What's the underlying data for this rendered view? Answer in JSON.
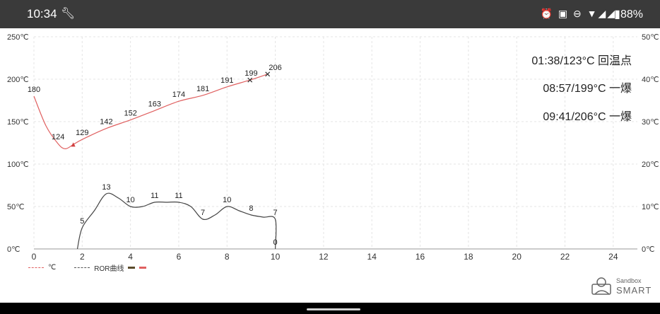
{
  "status_bar": {
    "time": "10:34",
    "left_icon": "wrench-icon",
    "icons_text": "⏰ ▣ ⊖ ▼◢◢",
    "battery": "▮88%"
  },
  "annotations": [
    "01:38/123°C 回温点",
    "08:57/199°C 一爆",
    "09:41/206°C 一爆"
  ],
  "legend": {
    "temp_label": "℃",
    "ror_label": "ROR曲线"
  },
  "logo": {
    "line1": "Sandbox",
    "line2": "SMART"
  },
  "colors": {
    "temp": "#e06060",
    "ror": "#444444",
    "swatch1": "#5a4a2a",
    "swatch2": "#e06060"
  },
  "chart_data": {
    "type": "line",
    "xlim": [
      0,
      25
    ],
    "x_ticks": [
      "0",
      "2",
      "4",
      "6",
      "8",
      "10",
      "12",
      "14",
      "16",
      "18",
      "20",
      "22",
      "24"
    ],
    "y_left_ticks": [
      "0℃",
      "50℃",
      "100℃",
      "150℃",
      "200℃",
      "250℃"
    ],
    "y_right_ticks": [
      "0℃",
      "10℃",
      "20℃",
      "30℃",
      "40℃",
      "50℃"
    ],
    "ylim_left": [
      0,
      250
    ],
    "ylim_right": [
      0,
      50
    ],
    "grid": true,
    "series": [
      {
        "name": "℃",
        "axis": "left",
        "x": [
          0,
          0.5,
          1.0,
          1.3,
          1.63,
          2.0,
          3.0,
          4.0,
          5.0,
          6.0,
          7.0,
          8.0,
          8.95,
          9.68
        ],
        "y": [
          180,
          145,
          124,
          118,
          123,
          129,
          142,
          152,
          163,
          174,
          181,
          191,
          199,
          206
        ],
        "labels": [
          {
            "x": 0,
            "y": 180,
            "text": "180"
          },
          {
            "x": 1.0,
            "y": 124,
            "text": "124"
          },
          {
            "x": 2.0,
            "y": 129,
            "text": "129"
          },
          {
            "x": 3.0,
            "y": 142,
            "text": "142"
          },
          {
            "x": 4.0,
            "y": 152,
            "text": "152"
          },
          {
            "x": 5.0,
            "y": 163,
            "text": "163"
          },
          {
            "x": 6.0,
            "y": 174,
            "text": "174"
          },
          {
            "x": 7.0,
            "y": 181,
            "text": "181"
          },
          {
            "x": 8.0,
            "y": 191,
            "text": "191"
          },
          {
            "x": 9.0,
            "y": 199,
            "text": "199"
          },
          {
            "x": 10.0,
            "y": 206,
            "text": "206"
          }
        ]
      },
      {
        "name": "ROR曲线",
        "axis": "right",
        "x": [
          1.8,
          2.0,
          2.5,
          3.0,
          3.5,
          4.0,
          4.5,
          5.0,
          5.5,
          6.0,
          6.5,
          7.0,
          7.5,
          8.0,
          8.5,
          9.0,
          9.5,
          10.0,
          10.0
        ],
        "y": [
          0,
          5,
          9,
          13,
          12,
          10,
          10,
          11,
          11,
          11,
          10,
          7,
          8,
          10,
          9,
          8,
          7.5,
          7,
          0
        ],
        "labels": [
          {
            "x": 2.0,
            "y": 5,
            "text": "5"
          },
          {
            "x": 3.0,
            "y": 13,
            "text": "13"
          },
          {
            "x": 4.0,
            "y": 10,
            "text": "10"
          },
          {
            "x": 5.0,
            "y": 11,
            "text": "11"
          },
          {
            "x": 6.0,
            "y": 11,
            "text": "11"
          },
          {
            "x": 7.0,
            "y": 7,
            "text": "7"
          },
          {
            "x": 8.0,
            "y": 10,
            "text": "10"
          },
          {
            "x": 9.0,
            "y": 8,
            "text": "8"
          },
          {
            "x": 10.0,
            "y": 7,
            "text": "7"
          },
          {
            "x": 10.0,
            "y": 0,
            "text": "0"
          }
        ]
      }
    ],
    "markers": [
      {
        "x": 1.63,
        "y": 123,
        "shape": "triangle"
      },
      {
        "x": 8.95,
        "y": 199,
        "shape": "x"
      },
      {
        "x": 9.68,
        "y": 206,
        "shape": "x"
      }
    ]
  }
}
